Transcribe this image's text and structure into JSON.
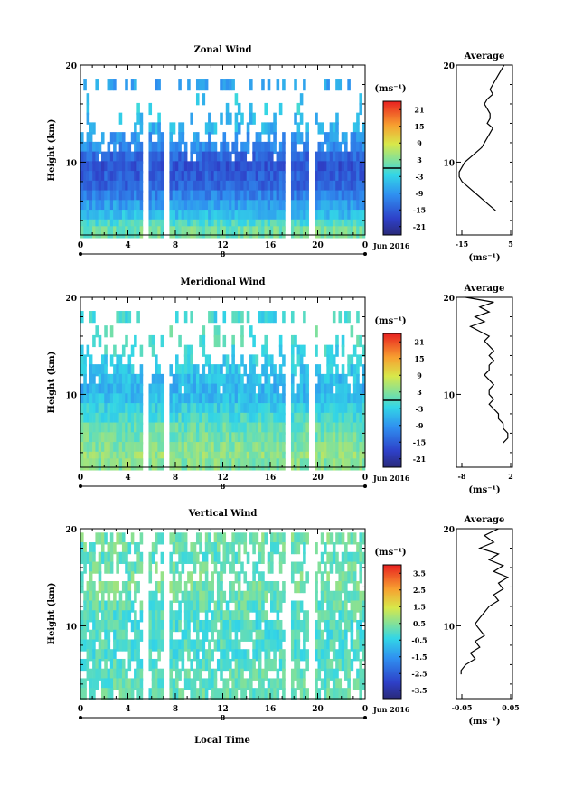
{
  "page": {
    "x_axis_label": "Local Time",
    "date_label": "Jun 2016",
    "day_marker": "8",
    "average_title": "Average"
  },
  "chart_data": [
    {
      "id": "zonal",
      "type": "heatmap",
      "title": "Zonal Wind",
      "xlabel": "",
      "ylabel": "Height (km)",
      "xlim": [
        0,
        24
      ],
      "ylim": [
        2.5,
        20
      ],
      "x_ticks": [
        "0",
        "4",
        "8",
        "12",
        "16",
        "20",
        "0"
      ],
      "y_ticks": [
        "20",
        "10"
      ],
      "colorbar": {
        "unit": "(ms⁻¹)",
        "range": [
          -24,
          24
        ],
        "ticks": [
          "21",
          "15",
          "9",
          "3",
          "-3",
          "-9",
          "-15",
          "-21"
        ],
        "zero_line": 0
      },
      "rows": [
        {
          "h": 18.0,
          "v": -8,
          "cov": 0.4
        },
        {
          "h": 16.5,
          "v": -4,
          "cov": 0.1
        },
        {
          "h": 15.5,
          "v": -4,
          "cov": 0.12
        },
        {
          "h": 14.5,
          "v": -5,
          "cov": 0.2
        },
        {
          "h": 13.5,
          "v": -6,
          "cov": 0.35
        },
        {
          "h": 12.5,
          "v": -9,
          "cov": 0.55
        },
        {
          "h": 11.5,
          "v": -10,
          "cov": 0.75
        },
        {
          "h": 10.5,
          "v": -14,
          "cov": 0.95
        },
        {
          "h": 9.5,
          "v": -16,
          "cov": 1.0
        },
        {
          "h": 8.5,
          "v": -15,
          "cov": 1.0
        },
        {
          "h": 7.5,
          "v": -14,
          "cov": 1.0
        },
        {
          "h": 6.5,
          "v": -11,
          "cov": 1.0
        },
        {
          "h": 5.5,
          "v": -8,
          "cov": 1.0
        },
        {
          "h": 4.5,
          "v": -5,
          "cov": 1.0
        },
        {
          "h": 3.5,
          "v": -1,
          "cov": 1.0
        },
        {
          "h": 2.8,
          "v": 2,
          "cov": 1.0
        }
      ],
      "gaps": [
        5.5,
        7.3,
        17.6,
        19.5
      ],
      "average": {
        "xlim": [
          -15,
          5
        ],
        "x_ticks": [
          "-15",
          "5"
        ],
        "x": [
          2,
          1,
          0,
          -1,
          -2,
          -3,
          -2,
          -4,
          -5,
          -4,
          -3,
          -3,
          -4,
          -2,
          -3,
          -4,
          -5,
          -6,
          -8,
          -10,
          -12,
          -13,
          -14,
          -14,
          -13,
          -11,
          -9,
          -7,
          -5,
          -3,
          -1
        ],
        "y": [
          20,
          19.5,
          19,
          18.5,
          18,
          17.5,
          17,
          16.5,
          16,
          15.5,
          15,
          14.5,
          14,
          13.5,
          13,
          12.5,
          12,
          11.5,
          11,
          10.5,
          10,
          9.5,
          9,
          8.5,
          8,
          7.5,
          7,
          6.5,
          6,
          5.5,
          5
        ]
      }
    },
    {
      "id": "meridional",
      "type": "heatmap",
      "title": "Meridional Wind",
      "xlabel": "",
      "ylabel": "Height (km)",
      "xlim": [
        0,
        24
      ],
      "ylim": [
        2.5,
        20
      ],
      "x_ticks": [
        "0",
        "4",
        "8",
        "12",
        "16",
        "20",
        "0"
      ],
      "y_ticks": [
        "20",
        "10"
      ],
      "colorbar": {
        "unit": "(ms⁻¹)",
        "range": [
          -24,
          24
        ],
        "ticks": [
          "21",
          "15",
          "9",
          "3",
          "-3",
          "-9",
          "-15",
          "-21"
        ],
        "zero_line": 0
      },
      "rows": [
        {
          "h": 18.0,
          "v": -2,
          "cov": 0.4
        },
        {
          "h": 16.5,
          "v": 0,
          "cov": 0.15
        },
        {
          "h": 15.5,
          "v": -1,
          "cov": 0.2
        },
        {
          "h": 14.5,
          "v": -2,
          "cov": 0.3
        },
        {
          "h": 13.5,
          "v": -3,
          "cov": 0.45
        },
        {
          "h": 12.5,
          "v": -4,
          "cov": 0.7
        },
        {
          "h": 11.5,
          "v": -5,
          "cov": 0.85
        },
        {
          "h": 10.5,
          "v": -6,
          "cov": 0.95
        },
        {
          "h": 9.5,
          "v": -5,
          "cov": 1.0
        },
        {
          "h": 8.5,
          "v": -3,
          "cov": 1.0
        },
        {
          "h": 7.5,
          "v": -1,
          "cov": 1.0
        },
        {
          "h": 6.5,
          "v": 1,
          "cov": 1.0
        },
        {
          "h": 5.5,
          "v": 2,
          "cov": 1.0
        },
        {
          "h": 4.5,
          "v": 3,
          "cov": 1.0
        },
        {
          "h": 3.5,
          "v": 4,
          "cov": 1.0
        },
        {
          "h": 2.8,
          "v": 3,
          "cov": 1.0
        }
      ],
      "gaps": [
        5.5,
        7.3,
        17.6,
        19.5
      ],
      "average": {
        "xlim": [
          -8,
          4
        ],
        "x_ticks": [
          "-8",
          "2"
        ],
        "x": [
          -6,
          0,
          -3,
          -1,
          -4,
          -2,
          -5,
          -3,
          -1,
          -2,
          -1,
          0,
          -1,
          0,
          -1,
          -1,
          -2,
          -1,
          0,
          -1,
          -1,
          0,
          -1,
          0,
          1,
          1,
          2,
          2,
          3,
          3,
          2
        ],
        "y": [
          20,
          19.5,
          19,
          18.5,
          18,
          17.5,
          17,
          16.5,
          16,
          15.5,
          15,
          14.5,
          14,
          13.5,
          13,
          12.5,
          12,
          11.5,
          11,
          10.5,
          10,
          9.5,
          9,
          8.5,
          8,
          7.5,
          7,
          6.5,
          6,
          5.5,
          5
        ]
      }
    },
    {
      "id": "vertical",
      "type": "heatmap",
      "title": "Vertical Wind",
      "xlabel": "Local Time",
      "ylabel": "Height (km)",
      "xlim": [
        0,
        24
      ],
      "ylim": [
        2.5,
        20
      ],
      "x_ticks": [
        "0",
        "4",
        "8",
        "12",
        "16",
        "20",
        "0"
      ],
      "y_ticks": [
        "20",
        "10"
      ],
      "colorbar": {
        "unit": "(ms⁻¹)",
        "range": [
          -4,
          4
        ],
        "ticks": [
          "3.5",
          "2.5",
          "1.5",
          "0.5",
          "-0.5",
          "-1.5",
          "-2.5",
          "-3.5"
        ],
        "zero_line": null
      },
      "rows": [
        {
          "h": 19.0,
          "v": 0.3,
          "cov": 0.7
        },
        {
          "h": 18.0,
          "v": 0.2,
          "cov": 0.6
        },
        {
          "h": 17.0,
          "v": 0.1,
          "cov": 0.65
        },
        {
          "h": 16.0,
          "v": 0.2,
          "cov": 0.55
        },
        {
          "h": 15.0,
          "v": 0.3,
          "cov": 0.3
        },
        {
          "h": 14.0,
          "v": 0.4,
          "cov": 0.75
        },
        {
          "h": 13.0,
          "v": 0.2,
          "cov": 0.8
        },
        {
          "h": 12.0,
          "v": 0.1,
          "cov": 0.8
        },
        {
          "h": 11.0,
          "v": 0.0,
          "cov": 0.8
        },
        {
          "h": 10.0,
          "v": -0.1,
          "cov": 0.8
        },
        {
          "h": 9.0,
          "v": -0.1,
          "cov": 0.75
        },
        {
          "h": 8.0,
          "v": 0.0,
          "cov": 0.75
        },
        {
          "h": 7.0,
          "v": -0.1,
          "cov": 0.7
        },
        {
          "h": 6.0,
          "v": 0.0,
          "cov": 0.7
        },
        {
          "h": 5.0,
          "v": 0.1,
          "cov": 0.7
        },
        {
          "h": 4.0,
          "v": 0.1,
          "cov": 0.75
        },
        {
          "h": 3.0,
          "v": 0.2,
          "cov": 0.8
        }
      ],
      "gaps": [
        5.5,
        7.3,
        17.6,
        19.5
      ],
      "average": {
        "xlim": [
          -0.06,
          0.06
        ],
        "x_ticks": [
          "-0.05",
          "0.05"
        ],
        "x": [
          0.03,
          0.0,
          0.02,
          -0.01,
          0.03,
          0.01,
          0.04,
          0.02,
          0.05,
          0.03,
          0.04,
          0.02,
          0.03,
          0.01,
          0.0,
          -0.01,
          -0.02,
          -0.01,
          0.0,
          -0.02,
          -0.01,
          -0.03,
          -0.02,
          -0.04,
          -0.05,
          -0.05
        ],
        "y": [
          20,
          19.3,
          18.6,
          18,
          17.4,
          16.8,
          16.2,
          15.6,
          15,
          14.4,
          13.8,
          13.2,
          12.6,
          12,
          11.4,
          10.8,
          10.2,
          9.6,
          9,
          8.4,
          7.8,
          7.2,
          6.6,
          6,
          5.4,
          5
        ]
      }
    }
  ]
}
